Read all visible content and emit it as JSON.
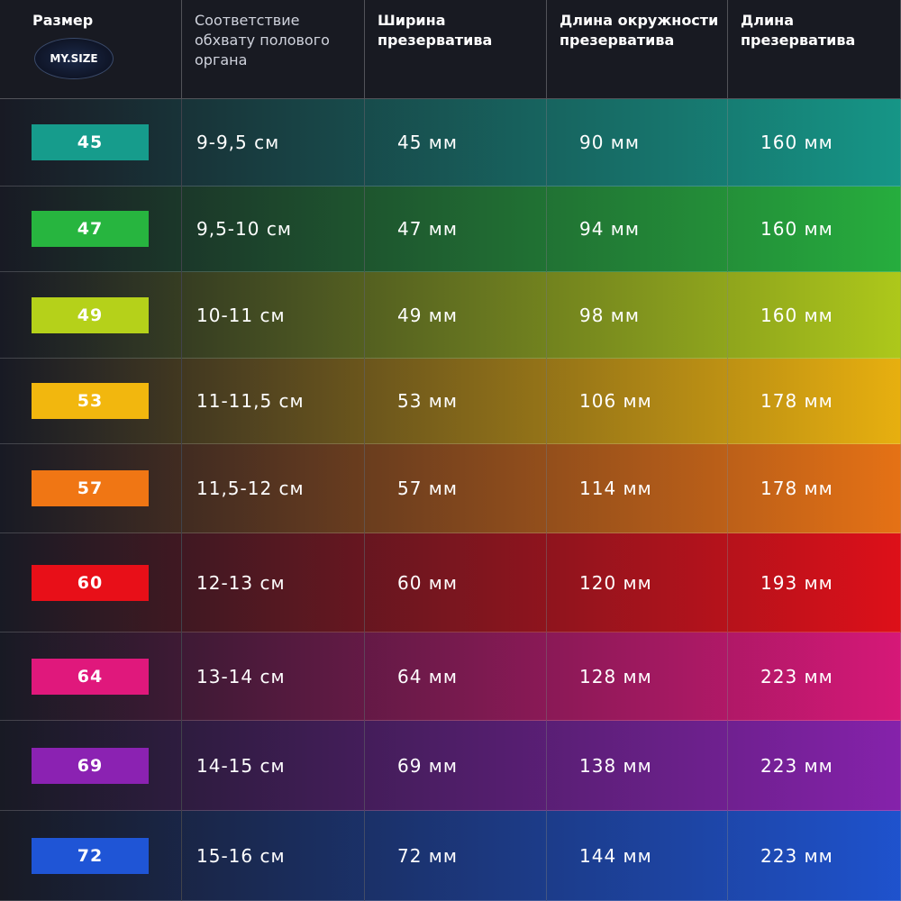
{
  "header": {
    "columns": [
      "Размер",
      "Соответствие обхвату полового органа",
      "Ширина презерватива",
      "Длина окружности презерватива",
      "Длина презерватива"
    ],
    "logo": "MY.SIZE"
  },
  "table": {
    "rows": [
      [
        "45",
        "9-9,5 см",
        "45 мм",
        "90 мм",
        "160 мм"
      ],
      [
        "47",
        "9,5-10 см",
        "47 мм",
        "94 мм",
        "160 мм"
      ],
      [
        "49",
        "10-11 см",
        "49 мм",
        "98 мм",
        "160 мм"
      ],
      [
        "53",
        "11-11,5 см",
        "53 мм",
        "106 мм",
        "178 мм"
      ],
      [
        "57",
        "11,5-12 см",
        "57 мм",
        "114 мм",
        "178 мм"
      ],
      [
        "60",
        "12-13 см",
        "60 мм",
        "120 мм",
        "193 мм"
      ],
      [
        "64",
        "13-14 см",
        "64 мм",
        "128 мм",
        "223 мм"
      ],
      [
        "69",
        "14-15 см",
        "69 мм",
        "138 мм",
        "223 мм"
      ],
      [
        "72",
        "15-16 см",
        "72 мм",
        "144 мм",
        "223 мм"
      ]
    ]
  }
}
